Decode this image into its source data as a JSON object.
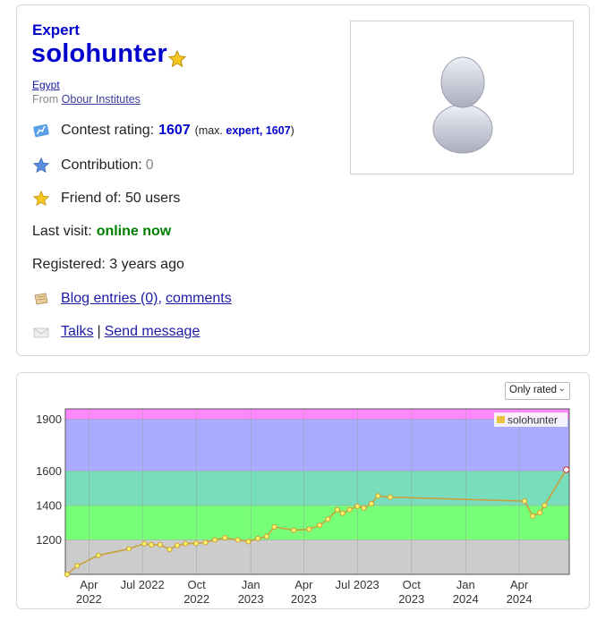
{
  "profile": {
    "rank": "Expert",
    "handle": "solohunter",
    "country": "Egypt",
    "from_prefix": "From",
    "organization": "Obour Institutes",
    "contest_rating_label": "Contest rating:",
    "contest_rating": "1607",
    "max_prefix": "(max.",
    "max_rank": "expert, 1607",
    "max_suffix": ")",
    "contribution_label": "Contribution:",
    "contribution": "0",
    "friend_of": "Friend of: 50 users",
    "last_visit_label": "Last visit:",
    "last_visit": "online now",
    "registered": "Registered: 3 years ago",
    "blog_entries": "Blog entries (0)",
    "comma": ",",
    "comments": "comments",
    "talks": "Talks",
    "separator": "|",
    "send_message": "Send message"
  },
  "icons": {
    "handle": "star-icon",
    "rating": "rating-chart-icon",
    "contribution": "blue-star-icon",
    "friends": "gold-star-icon",
    "blog": "blog-scroll-icon",
    "talks": "envelope-icon",
    "avatar": "default-user-avatar"
  },
  "colors": {
    "expert": "#0000cc",
    "online": "#008000",
    "band_candidate_master": "#ff88ff",
    "band_expert": "#aaaaff",
    "band_specialist": "#77ddbb",
    "band_pupil": "#77ff77",
    "band_newbie": "#cccccc",
    "series_line": "#edc240",
    "last_point": "#cc3333"
  },
  "filter": {
    "selected": "Only rated"
  },
  "chart_data": {
    "type": "line",
    "x_axis_type": "date",
    "xlim": [
      "2022-02-20",
      "2024-06-25"
    ],
    "ylim": [
      1000,
      1960
    ],
    "y_ticks": [
      {
        "value": 1900,
        "label": "1900"
      },
      {
        "value": 1600,
        "label": "1600"
      },
      {
        "value": 1400,
        "label": "1400"
      },
      {
        "value": 1200,
        "label": "1200"
      }
    ],
    "x_ticks": [
      {
        "date": "2022-04-01",
        "line1": "Apr",
        "line2": "2022"
      },
      {
        "date": "2022-07-01",
        "line1": "Jul 2022",
        "line2": ""
      },
      {
        "date": "2022-10-01",
        "line1": "Oct",
        "line2": "2022"
      },
      {
        "date": "2023-01-01",
        "line1": "Jan",
        "line2": "2023"
      },
      {
        "date": "2023-04-01",
        "line1": "Apr",
        "line2": "2023"
      },
      {
        "date": "2023-07-01",
        "line1": "Jul 2023",
        "line2": ""
      },
      {
        "date": "2023-10-01",
        "line1": "Oct",
        "line2": "2023"
      },
      {
        "date": "2024-01-01",
        "line1": "Jan",
        "line2": "2024"
      },
      {
        "date": "2024-04-01",
        "line1": "Apr",
        "line2": "2024"
      }
    ],
    "bands": [
      {
        "from": 1900,
        "to": 1960,
        "color": "#ff88ff"
      },
      {
        "from": 1600,
        "to": 1900,
        "color": "#aaaaff"
      },
      {
        "from": 1400,
        "to": 1600,
        "color": "#77ddbb"
      },
      {
        "from": 1200,
        "to": 1400,
        "color": "#77ff77"
      },
      {
        "from": 1000,
        "to": 1200,
        "color": "#cccccc"
      }
    ],
    "series": [
      {
        "name": "solohunter",
        "color": "#edc240",
        "points": [
          {
            "x": "2022-02-23",
            "y": 1000
          },
          {
            "x": "2022-03-12",
            "y": 1050
          },
          {
            "x": "2022-04-17",
            "y": 1110
          },
          {
            "x": "2022-06-08",
            "y": 1148
          },
          {
            "x": "2022-07-04",
            "y": 1178
          },
          {
            "x": "2022-07-16",
            "y": 1172
          },
          {
            "x": "2022-07-31",
            "y": 1172
          },
          {
            "x": "2022-08-16",
            "y": 1145
          },
          {
            "x": "2022-08-29",
            "y": 1168
          },
          {
            "x": "2022-09-12",
            "y": 1178
          },
          {
            "x": "2022-09-30",
            "y": 1180
          },
          {
            "x": "2022-10-16",
            "y": 1185
          },
          {
            "x": "2022-11-01",
            "y": 1200
          },
          {
            "x": "2022-11-18",
            "y": 1212
          },
          {
            "x": "2022-12-10",
            "y": 1200
          },
          {
            "x": "2022-12-28",
            "y": 1190
          },
          {
            "x": "2023-01-13",
            "y": 1208
          },
          {
            "x": "2023-01-28",
            "y": 1220
          },
          {
            "x": "2023-02-10",
            "y": 1275
          },
          {
            "x": "2023-03-15",
            "y": 1256
          },
          {
            "x": "2023-04-10",
            "y": 1262
          },
          {
            "x": "2023-04-28",
            "y": 1285
          },
          {
            "x": "2023-05-12",
            "y": 1320
          },
          {
            "x": "2023-05-28",
            "y": 1375
          },
          {
            "x": "2023-06-06",
            "y": 1355
          },
          {
            "x": "2023-06-18",
            "y": 1375
          },
          {
            "x": "2023-07-01",
            "y": 1395
          },
          {
            "x": "2023-07-12",
            "y": 1385
          },
          {
            "x": "2023-07-25",
            "y": 1410
          },
          {
            "x": "2023-08-05",
            "y": 1455
          },
          {
            "x": "2023-08-26",
            "y": 1448
          },
          {
            "x": "2024-04-10",
            "y": 1425
          },
          {
            "x": "2024-04-24",
            "y": 1338
          },
          {
            "x": "2024-05-06",
            "y": 1358
          },
          {
            "x": "2024-05-14",
            "y": 1400
          },
          {
            "x": "2024-06-20",
            "y": 1607
          }
        ]
      }
    ],
    "legend_position": "top-right",
    "grid": true
  }
}
